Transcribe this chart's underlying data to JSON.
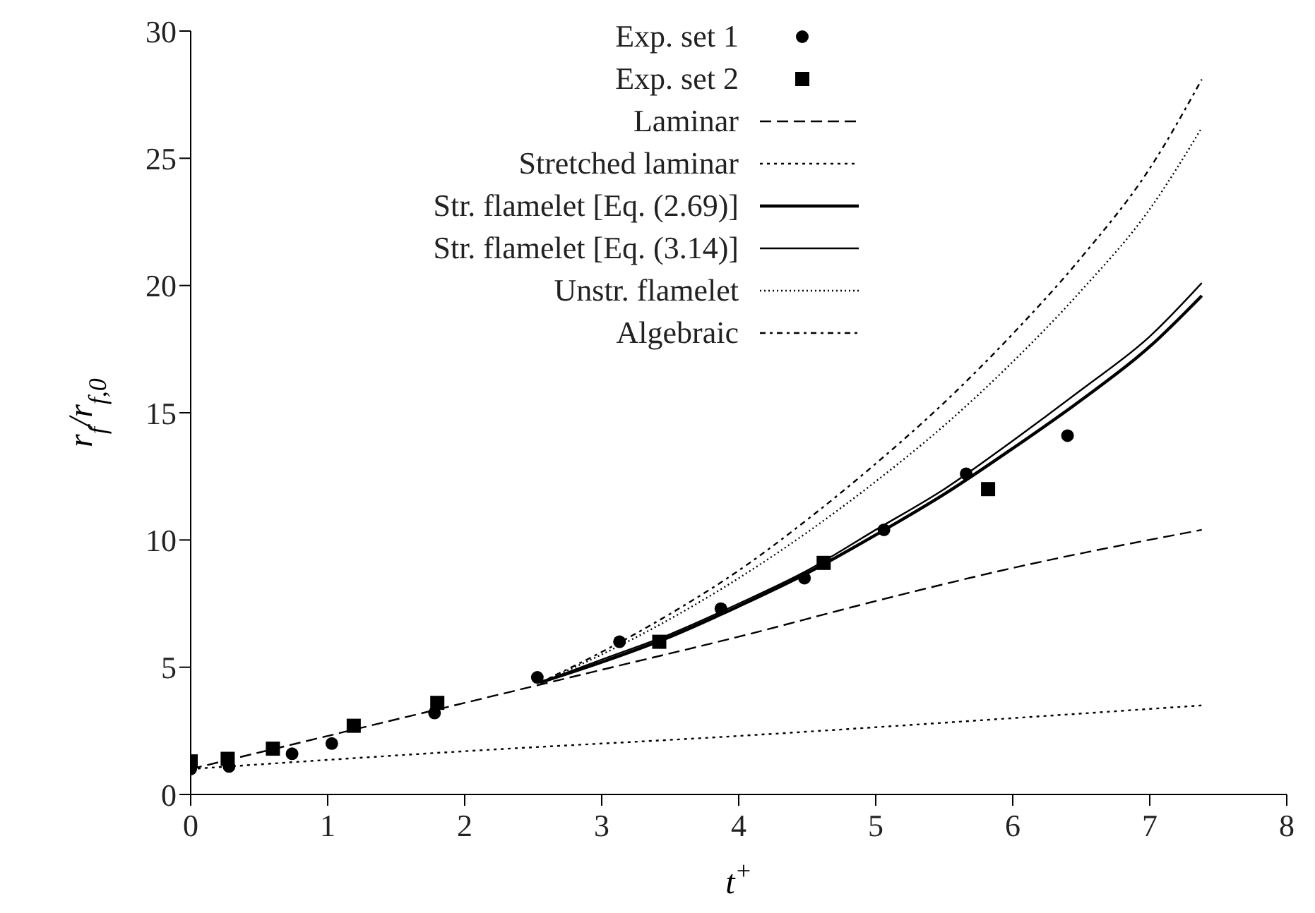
{
  "chart_data": {
    "type": "line",
    "xlabel": "t$^{+}$",
    "ylabel": "r$_{f}$/r$_{f,0}$",
    "xlim": [
      0,
      8
    ],
    "ylim": [
      0,
      30
    ],
    "xticks": [
      0,
      1,
      2,
      3,
      4,
      5,
      6,
      7,
      8
    ],
    "yticks": [
      0,
      5,
      10,
      15,
      20,
      25,
      30
    ],
    "grid": false,
    "legend": "top",
    "series": [
      {
        "name": "Exp. set 1",
        "type": "scatter",
        "marker": "circle",
        "color": "#000000",
        "x": [
          0,
          0.28,
          0.74,
          1.03,
          1.78,
          2.53,
          3.13,
          3.87,
          4.48,
          5.06,
          5.66,
          6.4
        ],
        "values": [
          1.0,
          1.1,
          1.6,
          2.0,
          3.2,
          4.6,
          6.0,
          7.3,
          8.5,
          10.4,
          12.6,
          14.1
        ]
      },
      {
        "name": "Exp. set 2",
        "type": "scatter",
        "marker": "square",
        "color": "#000000",
        "x": [
          0,
          0.27,
          0.6,
          1.19,
          1.8,
          3.42,
          4.62,
          5.82
        ],
        "values": [
          1.3,
          1.4,
          1.8,
          2.7,
          3.6,
          6.0,
          9.1,
          12.0
        ]
      },
      {
        "name": "Laminar",
        "line_style": "dashed",
        "color": "#000000",
        "x": [
          0,
          1,
          2,
          3,
          4,
          5,
          6,
          7.38
        ],
        "values": [
          1,
          2.3,
          3.6,
          4.9,
          6.2,
          7.6,
          8.9,
          10.4
        ]
      },
      {
        "name": "Stretched laminar",
        "line_style": "dotted",
        "color": "#000000",
        "x": [
          0,
          2,
          4,
          6,
          7.38
        ],
        "values": [
          1,
          1.7,
          2.3,
          3.0,
          3.5
        ]
      },
      {
        "name": "Str. flamelet [Eq. (2.69)]",
        "line_style": "solid",
        "color": "#000000",
        "x": [
          2.55,
          3,
          3.5,
          4,
          4.5,
          5,
          5.5,
          6,
          6.5,
          7,
          7.38
        ],
        "values": [
          4.4,
          5.2,
          6.2,
          7.4,
          8.7,
          10.2,
          11.8,
          13.6,
          15.5,
          17.6,
          19.6
        ]
      },
      {
        "name": "Str. flamelet [Eq. (3.14)]",
        "line_style": "solid",
        "color": "#000000",
        "x": [
          2.55,
          3,
          3.5,
          4,
          4.5,
          5,
          5.5,
          6,
          6.5,
          7,
          7.38
        ],
        "values": [
          4.4,
          5.3,
          6.3,
          7.5,
          8.8,
          10.4,
          12.0,
          13.9,
          15.9,
          18.0,
          20.1
        ]
      },
      {
        "name": "Unstr. flamelet",
        "line_style": "dotted",
        "color": "#000000",
        "x": [
          2.55,
          3,
          3.5,
          4,
          4.5,
          5,
          5.5,
          6,
          6.5,
          7,
          7.38
        ],
        "values": [
          4.4,
          5.5,
          6.9,
          8.5,
          10.3,
          12.3,
          14.5,
          17.0,
          19.8,
          23.0,
          26.2
        ]
      },
      {
        "name": "Algebraic",
        "line_style": "dashed",
        "color": "#000000",
        "x": [
          2.55,
          3,
          3.5,
          4,
          4.5,
          5,
          5.5,
          6,
          6.5,
          7,
          7.38
        ],
        "values": [
          4.4,
          5.6,
          7.1,
          8.8,
          10.8,
          13.0,
          15.4,
          18.1,
          21.1,
          24.6,
          28.1
        ]
      }
    ]
  }
}
